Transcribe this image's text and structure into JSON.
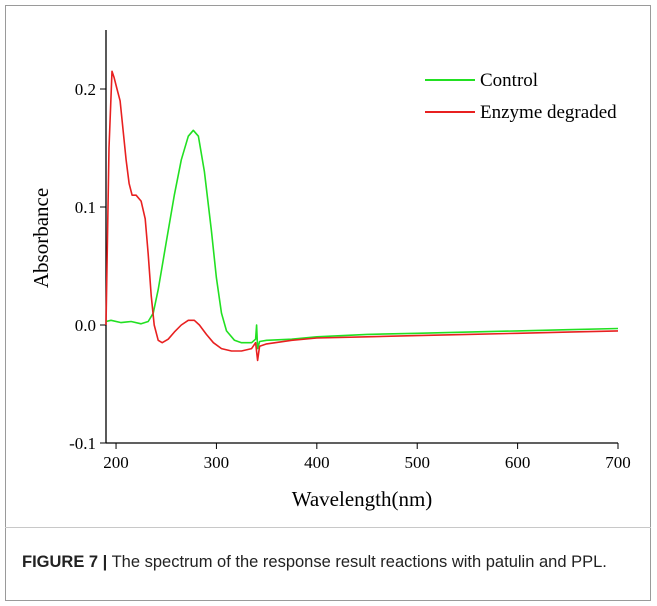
{
  "chart_data": {
    "type": "line",
    "xlabel": "Wavelength(nm)",
    "ylabel": "Absorbance",
    "xlim": [
      190,
      700
    ],
    "xticks": [
      200,
      300,
      400,
      500,
      600,
      700
    ],
    "ylim": [
      -0.1,
      0.25
    ],
    "yticks": [
      {
        "value": -0.1,
        "label": "-0.1"
      },
      {
        "value": 0,
        "label": "0.0"
      },
      {
        "value": 0.1,
        "label": "0.1"
      },
      {
        "value": 0.2,
        "label": "0.2"
      }
    ],
    "legend": "upper right",
    "series": [
      {
        "name": "Control",
        "color": "#22e022",
        "x": [
          190,
          195,
          205,
          215,
          225,
          232,
          237,
          242,
          250,
          258,
          265,
          272,
          277,
          282,
          288,
          295,
          300,
          305,
          310,
          318,
          325,
          335,
          339,
          340,
          341,
          343,
          350,
          375,
          400,
          450,
          500,
          550,
          600,
          650,
          700
        ],
        "values": [
          0.003,
          0.004,
          0.002,
          0.003,
          0.001,
          0.003,
          0.01,
          0.03,
          0.07,
          0.11,
          0.14,
          0.16,
          0.165,
          0.16,
          0.13,
          0.08,
          0.04,
          0.01,
          -0.005,
          -0.013,
          -0.015,
          -0.015,
          -0.012,
          0.0,
          -0.02,
          -0.014,
          -0.013,
          -0.012,
          -0.01,
          -0.008,
          -0.007,
          -0.006,
          -0.005,
          -0.004,
          -0.003
        ]
      },
      {
        "name": "Enzyme degraded",
        "color": "#e82020",
        "x": [
          190,
          193,
          196,
          198,
          201,
          204,
          207,
          210,
          213,
          216,
          220,
          225,
          229,
          232,
          235,
          238,
          242,
          246,
          252,
          258,
          265,
          272,
          278,
          283,
          290,
          297,
          305,
          315,
          325,
          335,
          339,
          341,
          343,
          350,
          375,
          400,
          450,
          500,
          550,
          600,
          650,
          700
        ],
        "values": [
          0.0,
          0.15,
          0.215,
          0.21,
          0.2,
          0.19,
          0.165,
          0.14,
          0.12,
          0.11,
          0.11,
          0.105,
          0.09,
          0.06,
          0.025,
          0.0,
          -0.013,
          -0.015,
          -0.012,
          -0.006,
          0.0,
          0.004,
          0.004,
          0.0,
          -0.008,
          -0.015,
          -0.02,
          -0.022,
          -0.022,
          -0.02,
          -0.015,
          -0.03,
          -0.018,
          -0.016,
          -0.013,
          -0.011,
          -0.01,
          -0.009,
          -0.008,
          -0.007,
          -0.006,
          -0.005
        ]
      }
    ]
  },
  "caption": {
    "label": "FIGURE 7 |",
    "text": " The spectrum of the response result reactions with patulin and PPL."
  }
}
